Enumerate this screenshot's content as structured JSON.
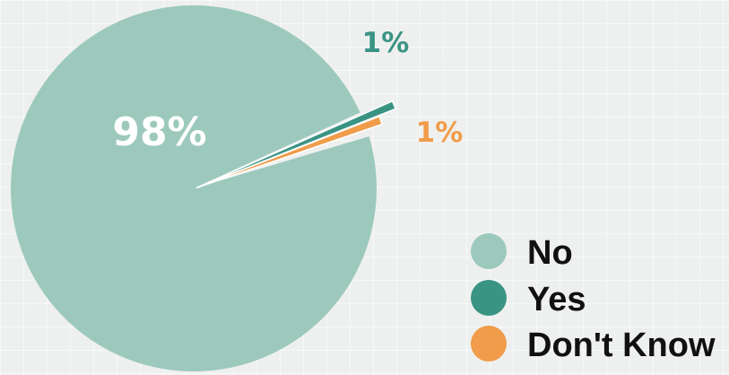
{
  "chart_data": {
    "type": "pie",
    "title": "",
    "slices": [
      {
        "label": "No",
        "value": 98,
        "value_label": "98%",
        "color": "#9dc9bd"
      },
      {
        "label": "Yes",
        "value": 1,
        "value_label": "1%",
        "color": "#3a9484"
      },
      {
        "label": "Don't Know",
        "value": 1,
        "value_label": "1%",
        "color": "#f09c4a"
      }
    ],
    "exploded_slices": [
      "Yes",
      "Don't Know"
    ],
    "legend_position": "bottom-right"
  }
}
